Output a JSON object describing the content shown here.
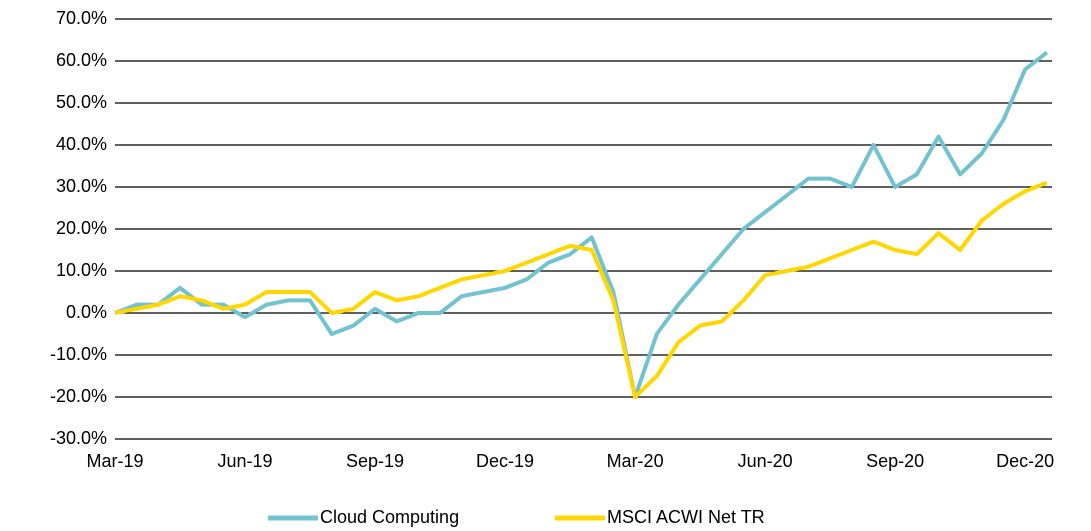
{
  "chart_data": {
    "type": "line",
    "categories": [
      "Mar-19",
      null,
      null,
      null,
      null,
      null,
      "Jun-19",
      null,
      null,
      null,
      null,
      null,
      "Sep-19",
      null,
      null,
      null,
      null,
      null,
      "Dec-19",
      null,
      null,
      null,
      null,
      null,
      "Mar-20",
      null,
      null,
      null,
      null,
      null,
      "Jun-20",
      null,
      null,
      null,
      null,
      null,
      "Sep-20",
      null,
      null,
      null,
      null,
      null,
      "Dec-20",
      null
    ],
    "series": [
      {
        "name": "Cloud Computing",
        "color": "#72c2d0",
        "values": [
          0,
          2,
          2,
          6,
          2,
          2,
          -1,
          2,
          3,
          3,
          -5,
          -3,
          1,
          -2,
          0,
          0,
          4,
          5,
          6,
          8,
          12,
          14,
          18,
          5,
          -20,
          -5,
          2,
          8,
          14,
          20,
          24,
          28,
          32,
          32,
          30,
          40,
          30,
          33,
          42,
          33,
          38,
          46,
          58,
          62
        ]
      },
      {
        "name": "MSCI ACWI Net TR",
        "color": "#ffd700",
        "values": [
          0,
          1,
          2,
          4,
          3,
          1,
          2,
          5,
          5,
          5,
          0,
          1,
          5,
          3,
          4,
          6,
          8,
          9,
          10,
          12,
          14,
          16,
          15,
          3,
          -20,
          -15,
          -7,
          -3,
          -2,
          3,
          9,
          10,
          11,
          13,
          15,
          17,
          15,
          14,
          19,
          15,
          22,
          26,
          29,
          31
        ]
      }
    ],
    "ylim": [
      -30,
      70
    ],
    "yticks": [
      {
        "value": -30,
        "label": "-30.0%"
      },
      {
        "value": -20,
        "label": "-20.0%"
      },
      {
        "value": -10,
        "label": "-10.0%"
      },
      {
        "value": 0,
        "label": "0.0%"
      },
      {
        "value": 10,
        "label": "10.0%"
      },
      {
        "value": 20,
        "label": "20.0%"
      },
      {
        "value": 30,
        "label": "30.0%"
      },
      {
        "value": 40,
        "label": "40.0%"
      },
      {
        "value": 50,
        "label": "50.0%"
      },
      {
        "value": 60,
        "label": "60.0%"
      },
      {
        "value": 70,
        "label": "70.0%"
      }
    ],
    "grid": true,
    "legend": "bottom"
  }
}
